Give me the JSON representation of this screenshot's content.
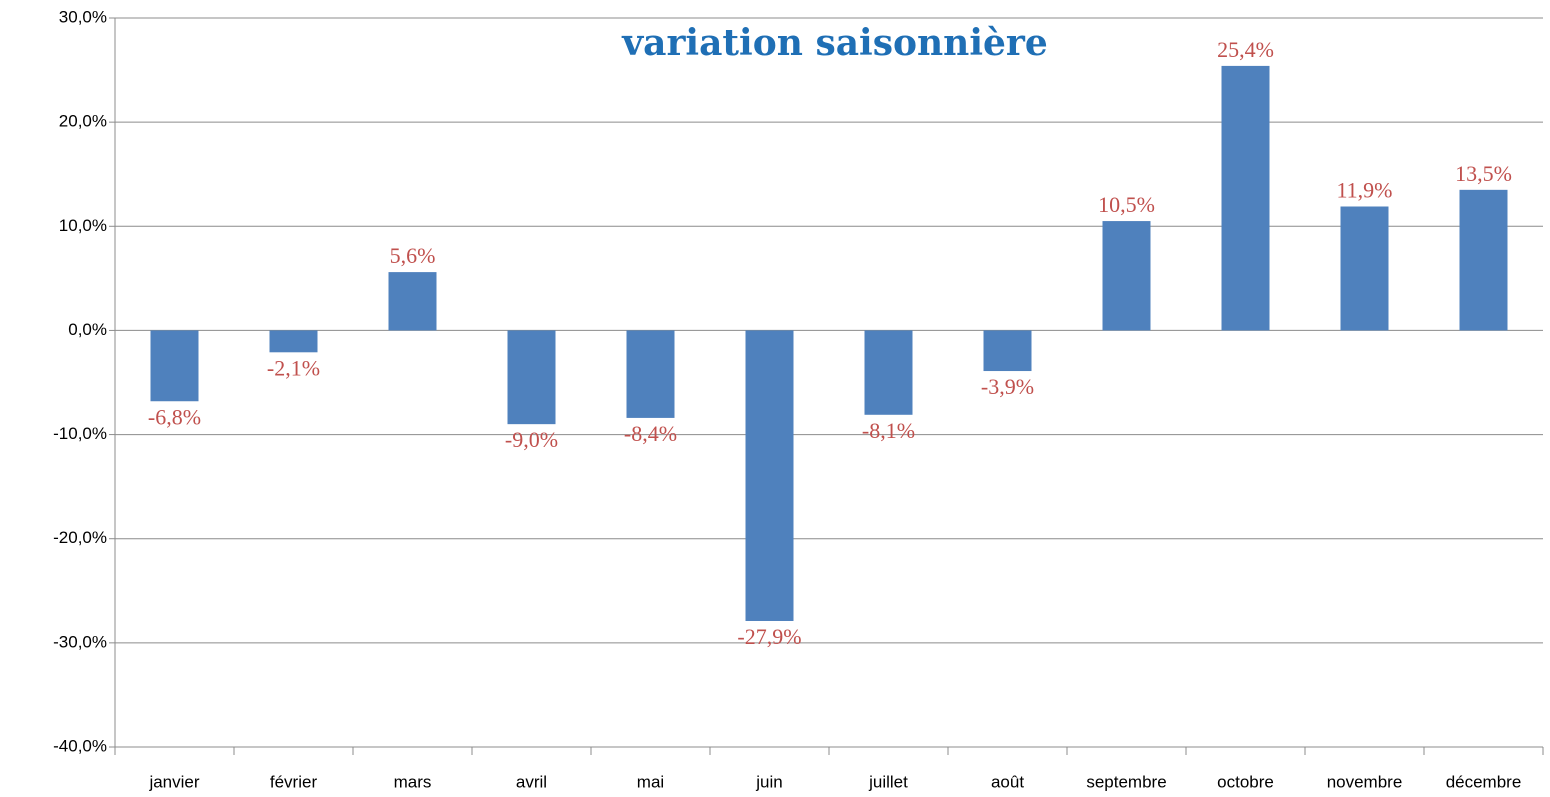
{
  "chart_data": {
    "type": "bar",
    "title": "variation saisonnière",
    "categories": [
      "janvier",
      "février",
      "mars",
      "avril",
      "mai",
      "juin",
      "juillet",
      "août",
      "septembre",
      "octobre",
      "novembre",
      "décembre"
    ],
    "values": [
      -6.8,
      -2.1,
      5.6,
      -9.0,
      -8.4,
      -27.9,
      -8.1,
      -3.9,
      10.5,
      25.4,
      11.9,
      13.5
    ],
    "value_labels": [
      "-6,8%",
      "-2,1%",
      "5,6%",
      "-9,0%",
      "-8,4%",
      "-27,9%",
      "-8,1%",
      "-3,9%",
      "10,5%",
      "25,4%",
      "11,9%",
      "13,5%"
    ],
    "color": "#4f81bd",
    "label_color": "#c0504d",
    "ylim": [
      -40,
      30
    ],
    "yticks": [
      {
        "value": 30,
        "label": "30,0%"
      },
      {
        "value": 20,
        "label": "20,0%"
      },
      {
        "value": 10,
        "label": "10,0%"
      },
      {
        "value": 0,
        "label": "0,0%"
      },
      {
        "value": -10,
        "label": "-10,0%"
      },
      {
        "value": -20,
        "label": "-20,0%"
      },
      {
        "value": -30,
        "label": "-30,0%"
      },
      {
        "value": -40,
        "label": "-40,0%"
      }
    ],
    "grid": true
  }
}
